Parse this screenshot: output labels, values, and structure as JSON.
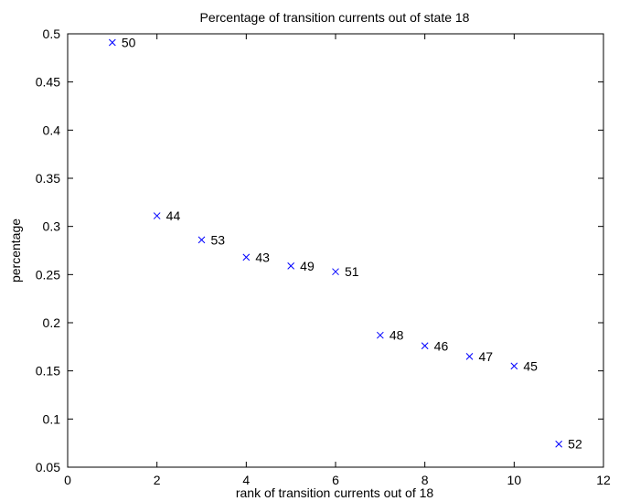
{
  "chart_data": {
    "type": "scatter",
    "title": "Percentage of transition currents out of state 18",
    "xlabel": "rank of transition currents out of 18",
    "ylabel": "percentage",
    "xlim": [
      0,
      12
    ],
    "ylim": [
      0.05,
      0.5
    ],
    "xticks": [
      0,
      2,
      4,
      6,
      8,
      10,
      12
    ],
    "yticks": [
      0.05,
      0.1,
      0.15,
      0.2,
      0.25,
      0.3,
      0.35,
      0.4,
      0.45,
      0.5
    ],
    "xtick_labels": [
      "0",
      "2",
      "4",
      "6",
      "8",
      "10",
      "12"
    ],
    "ytick_labels": [
      "0.05",
      "0.1",
      "0.15",
      "0.2",
      "0.25",
      "0.3",
      "0.35",
      "0.4",
      "0.45",
      "0.5"
    ],
    "grid": false,
    "marker": "x",
    "marker_color": "#0000ff",
    "points": [
      {
        "x": 1,
        "y": 0.491,
        "label": "50"
      },
      {
        "x": 2,
        "y": 0.311,
        "label": "44"
      },
      {
        "x": 3,
        "y": 0.286,
        "label": "53"
      },
      {
        "x": 4,
        "y": 0.268,
        "label": "43"
      },
      {
        "x": 5,
        "y": 0.259,
        "label": "49"
      },
      {
        "x": 6,
        "y": 0.253,
        "label": "51"
      },
      {
        "x": 7,
        "y": 0.187,
        "label": "48"
      },
      {
        "x": 8,
        "y": 0.176,
        "label": "46"
      },
      {
        "x": 9,
        "y": 0.165,
        "label": "47"
      },
      {
        "x": 10,
        "y": 0.155,
        "label": "45"
      },
      {
        "x": 11,
        "y": 0.074,
        "label": "52"
      }
    ]
  }
}
